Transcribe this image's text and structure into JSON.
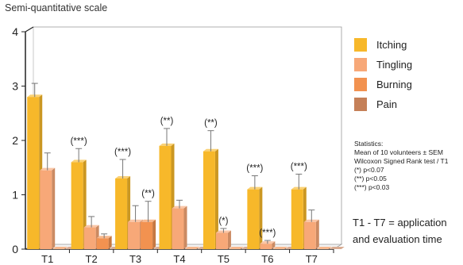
{
  "chart_data": {
    "type": "bar",
    "ylabel": "Semi-quantitative scale",
    "ylim": [
      0,
      4
    ],
    "yticks": [
      "0",
      "1",
      "2",
      "3",
      "4"
    ],
    "categories": [
      "T1",
      "T2",
      "T3",
      "T4",
      "T5",
      "T6",
      "T7"
    ],
    "series": [
      {
        "name": "Itching",
        "color": "#F7B82A",
        "values": [
          2.8,
          1.6,
          1.3,
          1.9,
          1.8,
          1.1,
          1.1
        ],
        "errors": [
          0.25,
          0.25,
          0.35,
          0.32,
          0.38,
          0.25,
          0.28
        ],
        "significance": [
          "",
          "(***)",
          "(***)",
          "(**)",
          "(**)",
          "(***)",
          "(***)"
        ]
      },
      {
        "name": "Tingling",
        "color": "#F7A878",
        "values": [
          1.45,
          0.4,
          0.5,
          0.75,
          0.3,
          0.1,
          0.5
        ],
        "errors": [
          0.32,
          0.2,
          0.3,
          0.15,
          0.08,
          0.06,
          0.22
        ],
        "significance": [
          "",
          "",
          "",
          "",
          "(*)",
          "(***)",
          ""
        ]
      },
      {
        "name": "Burning",
        "color": "#F29250",
        "values": [
          0,
          0.2,
          0.5,
          0,
          0,
          0,
          0
        ],
        "errors": [
          0,
          0.08,
          0.38,
          0,
          0,
          0,
          0
        ],
        "significance": [
          "",
          "",
          "(**)",
          "",
          "",
          "",
          ""
        ]
      },
      {
        "name": "Pain",
        "color": "#C58058",
        "values": [
          0,
          0,
          0,
          0,
          0,
          0,
          0
        ],
        "errors": [
          0,
          0,
          0,
          0,
          0,
          0,
          0
        ],
        "significance": [
          "",
          "",
          "",
          "",
          "",
          "",
          ""
        ]
      }
    ],
    "legend_position": "right",
    "grid": false
  },
  "stats": {
    "lines": [
      "Statistics:",
      "Mean of 10 volunteers ± SEM",
      "Wilcoxon Signed Rank test / T1",
      "(*) p<0.07",
      "(**) p<0.05",
      "(***) p<0.03"
    ]
  },
  "note": {
    "line1": "T1 - T7 = application",
    "line2": "and evaluation time"
  }
}
